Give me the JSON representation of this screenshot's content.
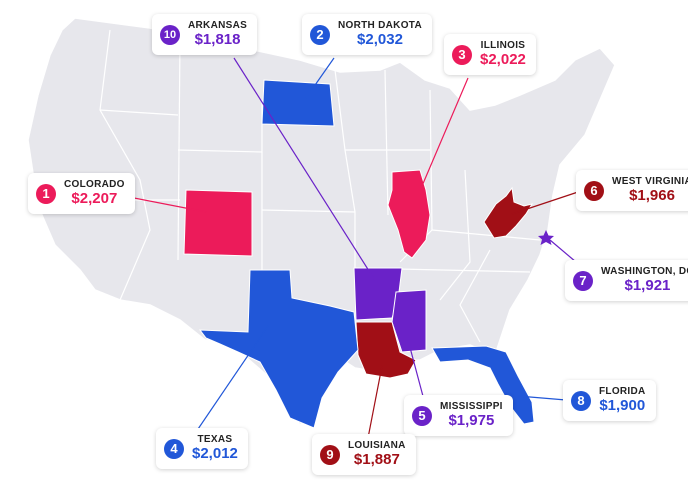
{
  "colors": {
    "pink": "#ec1b5a",
    "blue": "#2157d8",
    "purple": "#6a22c8",
    "darkred": "#a10f16",
    "land": "#e7e7ec",
    "border": "#ffffff"
  },
  "rankings": [
    {
      "rank": "1",
      "state": "COLORADO",
      "value": "$2,207",
      "color": "pink"
    },
    {
      "rank": "2",
      "state": "NORTH DAKOTA",
      "value": "$2,032",
      "color": "blue"
    },
    {
      "rank": "3",
      "state": "ILLINOIS",
      "value": "$2,022",
      "color": "pink"
    },
    {
      "rank": "4",
      "state": "TEXAS",
      "value": "$2,012",
      "color": "blue"
    },
    {
      "rank": "5",
      "state": "MISSISSIPPI",
      "value": "$1,975",
      "color": "purple"
    },
    {
      "rank": "6",
      "state": "WEST VIRGINIA",
      "value": "$1,966",
      "color": "darkred"
    },
    {
      "rank": "7",
      "state": "WASHINGTON, DC",
      "value": "$1,921",
      "color": "purple"
    },
    {
      "rank": "8",
      "state": "FLORIDA",
      "value": "$1,900",
      "color": "blue"
    },
    {
      "rank": "9",
      "state": "LOUISIANA",
      "value": "$1,887",
      "color": "darkred"
    },
    {
      "rank": "10",
      "state": "ARKANSAS",
      "value": "$1,818",
      "color": "purple"
    }
  ]
}
